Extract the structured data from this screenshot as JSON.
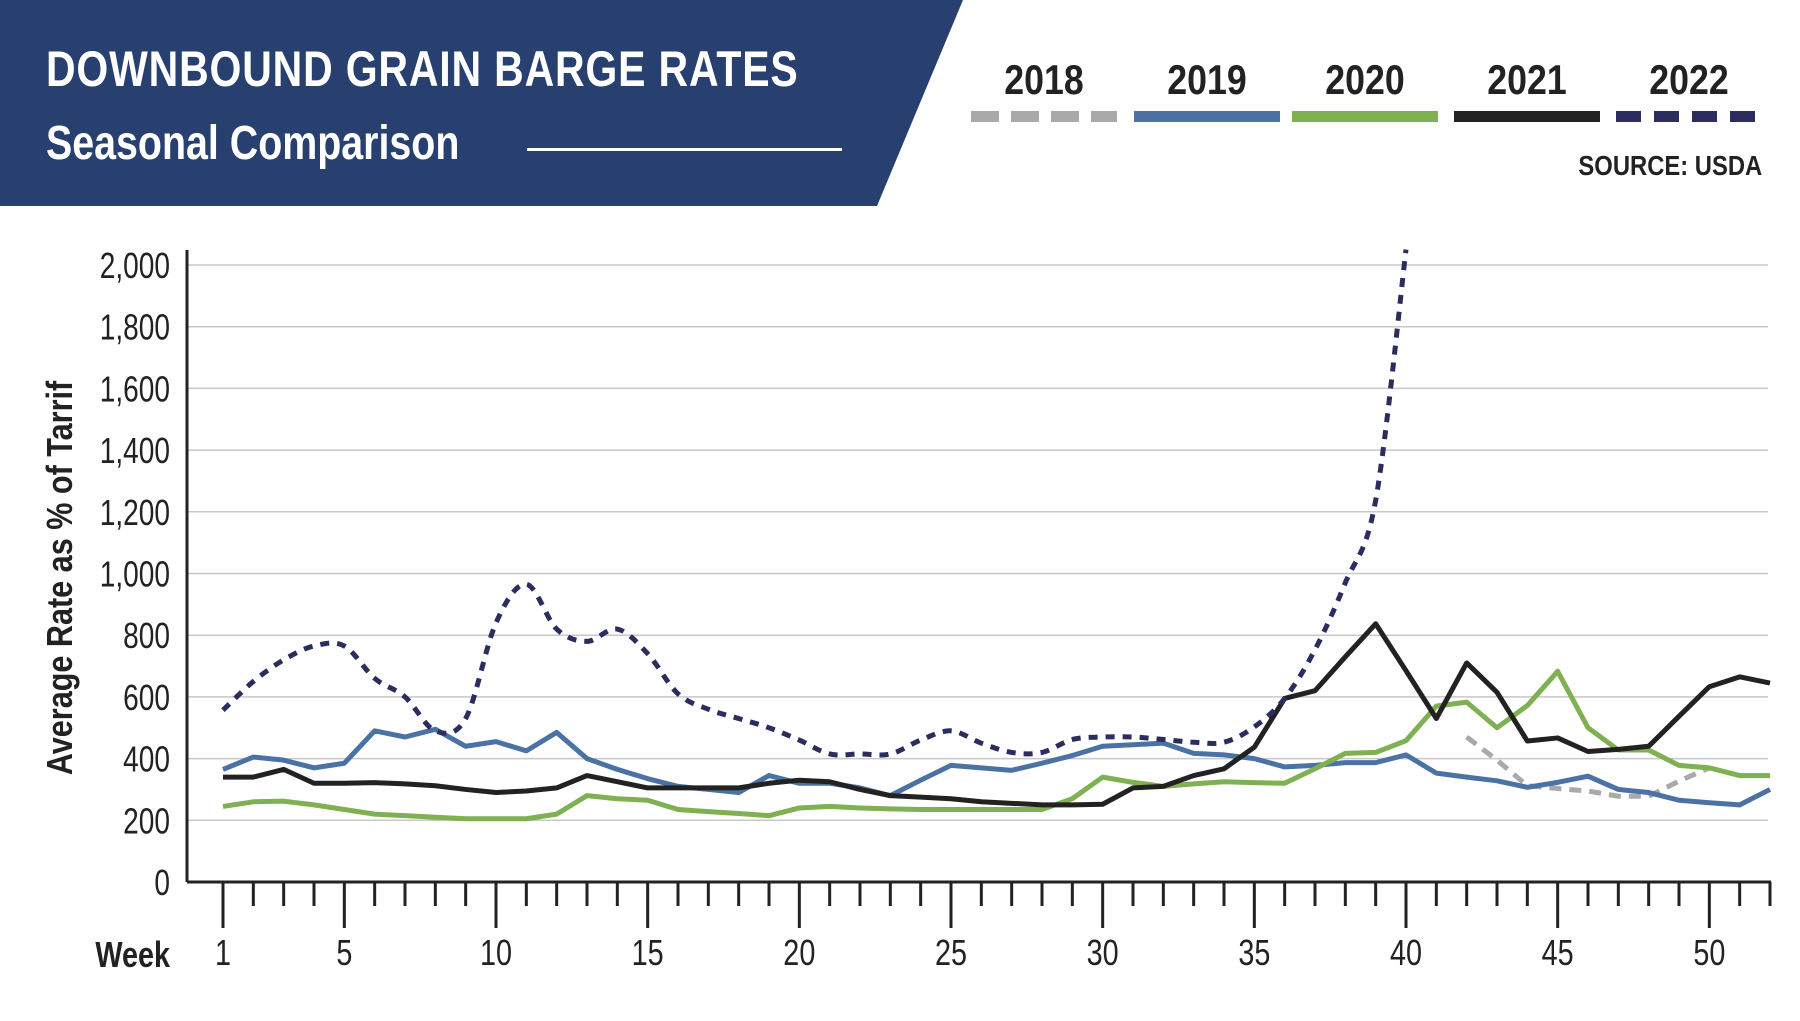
{
  "header": {
    "title": "DOWNBOUND GRAIN BARGE RATES",
    "subtitle": "Seasonal Comparison",
    "source": "SOURCE: USDA",
    "banner_color": "#27406f"
  },
  "chart_data": {
    "type": "line",
    "title": "DOWNBOUND GRAIN BARGE RATES",
    "subtitle": "Seasonal Comparison",
    "xlabel": "Week",
    "ylabel": "Average Rate as % of Tarrif",
    "xlim": [
      1,
      52
    ],
    "ylim": [
      0,
      2000
    ],
    "x_ticks": [
      1,
      5,
      10,
      15,
      20,
      25,
      30,
      35,
      40,
      45,
      50
    ],
    "y_ticks": [
      0,
      200,
      400,
      600,
      800,
      1000,
      1200,
      1400,
      1600,
      1800,
      2000
    ],
    "y_tick_labels": [
      "0",
      "200",
      "400",
      "600",
      "800",
      "1,000",
      "1,200",
      "1,400",
      "1,600",
      "1,800",
      "2,000"
    ],
    "grid": "horizontal",
    "legend": "top-right",
    "series": [
      {
        "name": "2018",
        "color": "#a7a9ab",
        "style": "dashed",
        "start_week": 42,
        "values": [
          470,
          395,
          312,
          303,
          295,
          278,
          278,
          327,
          370
        ]
      },
      {
        "name": "2019",
        "color": "#4a72a5",
        "style": "solid",
        "start_week": 1,
        "values": [
          365,
          405,
          395,
          370,
          385,
          490,
          470,
          495,
          440,
          455,
          425,
          485,
          400,
          365,
          335,
          310,
          300,
          290,
          345,
          320,
          320,
          305,
          280,
          330,
          378,
          370,
          362,
          385,
          410,
          440,
          445,
          450,
          417,
          412,
          400,
          373,
          378,
          387,
          387,
          412,
          353,
          340,
          328,
          307,
          323,
          343,
          300,
          290,
          265,
          257,
          250,
          300
        ]
      },
      {
        "name": "2020",
        "color": "#7fb051",
        "style": "solid",
        "start_week": 1,
        "values": [
          245,
          260,
          262,
          250,
          235,
          220,
          215,
          210,
          205,
          205,
          205,
          220,
          280,
          270,
          265,
          235,
          228,
          222,
          215,
          240,
          245,
          240,
          237,
          235,
          235,
          235,
          235,
          235,
          270,
          340,
          323,
          310,
          318,
          325,
          322,
          320,
          367,
          417,
          420,
          458,
          570,
          583,
          500,
          572,
          683,
          500,
          428,
          428,
          378,
          370,
          345,
          345
        ]
      },
      {
        "name": "2021",
        "color": "#222222",
        "style": "solid",
        "start_week": 1,
        "values": [
          340,
          340,
          365,
          320,
          320,
          322,
          318,
          312,
          300,
          290,
          295,
          305,
          345,
          325,
          305,
          305,
          305,
          305,
          320,
          330,
          325,
          300,
          280,
          275,
          270,
          260,
          255,
          250,
          250,
          252,
          305,
          310,
          345,
          367,
          437,
          595,
          620,
          730,
          837,
          685,
          530,
          710,
          615,
          457,
          467,
          423,
          430,
          440,
          537,
          633,
          665,
          645
        ]
      },
      {
        "name": "2022",
        "color": "#2b2d5e",
        "style": "dotted",
        "start_week": 1,
        "values": [
          557,
          650,
          720,
          765,
          765,
          660,
          600,
          490,
          530,
          840,
          965,
          820,
          780,
          820,
          740,
          610,
          560,
          530,
          500,
          460,
          415,
          415,
          415,
          460,
          490,
          450,
          420,
          420,
          462,
          470,
          470,
          462,
          453,
          453,
          503,
          595,
          753,
          970,
          1237,
          2050
        ]
      }
    ]
  }
}
